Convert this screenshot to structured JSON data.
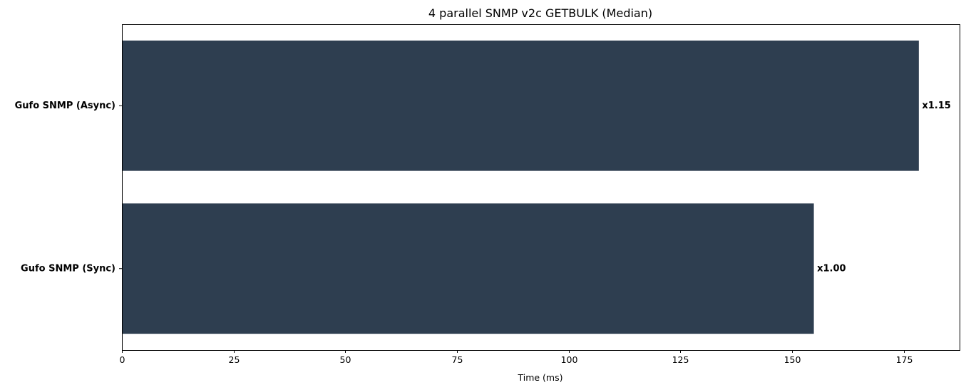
{
  "chart_data": {
    "type": "bar",
    "orientation": "horizontal",
    "title": "4 parallel SNMP v2c GETBULK (Median)",
    "xlabel": "Time (ms)",
    "ylabel": "",
    "categories": [
      "Gufo SNMP (Async)",
      "Gufo SNMP (Sync)"
    ],
    "values": [
      178.3,
      154.8
    ],
    "data_labels": [
      "x1.15",
      "x1.00"
    ],
    "xlim": [
      0,
      187.5
    ],
    "xticks": [
      0,
      25,
      50,
      75,
      100,
      125,
      150,
      175
    ],
    "xtick_labels": [
      "0",
      "25",
      "50",
      "75",
      "100",
      "125",
      "150",
      "175"
    ],
    "bar_color": "#2e3e50",
    "grid": false,
    "legend": "none"
  }
}
